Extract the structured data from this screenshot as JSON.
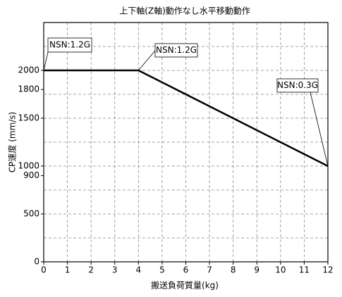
{
  "chart_data": {
    "type": "line",
    "title": "上下軸(Z軸)動作なし水平移動動作",
    "x_label": "搬送負荷質量(kg)",
    "y_label": "CP速度 (mm/s)",
    "x": [
      0,
      4,
      12
    ],
    "series": [
      {
        "name": "CP速度",
        "color": "#000000",
        "values": [
          2000,
          2000,
          1000
        ]
      }
    ],
    "xlim": [
      0,
      12
    ],
    "xticks": [
      0,
      1,
      2,
      3,
      4,
      5,
      6,
      7,
      8,
      9,
      10,
      11,
      12
    ],
    "ylim": [
      0,
      2500
    ],
    "yticks": [
      0,
      500,
      900,
      1000,
      1500,
      1800,
      2000
    ],
    "ygrid": [
      250,
      500,
      750,
      1000,
      1250,
      1500,
      1750,
      2000,
      2250
    ],
    "grid": true,
    "annotations": [
      {
        "text": "NSN:1.2G",
        "x": 0,
        "y": 2000
      },
      {
        "text": "NSN:1.2G",
        "x": 4,
        "y": 2000
      },
      {
        "text": "NSN:0.3G",
        "x": 12,
        "y": 1000
      }
    ]
  }
}
